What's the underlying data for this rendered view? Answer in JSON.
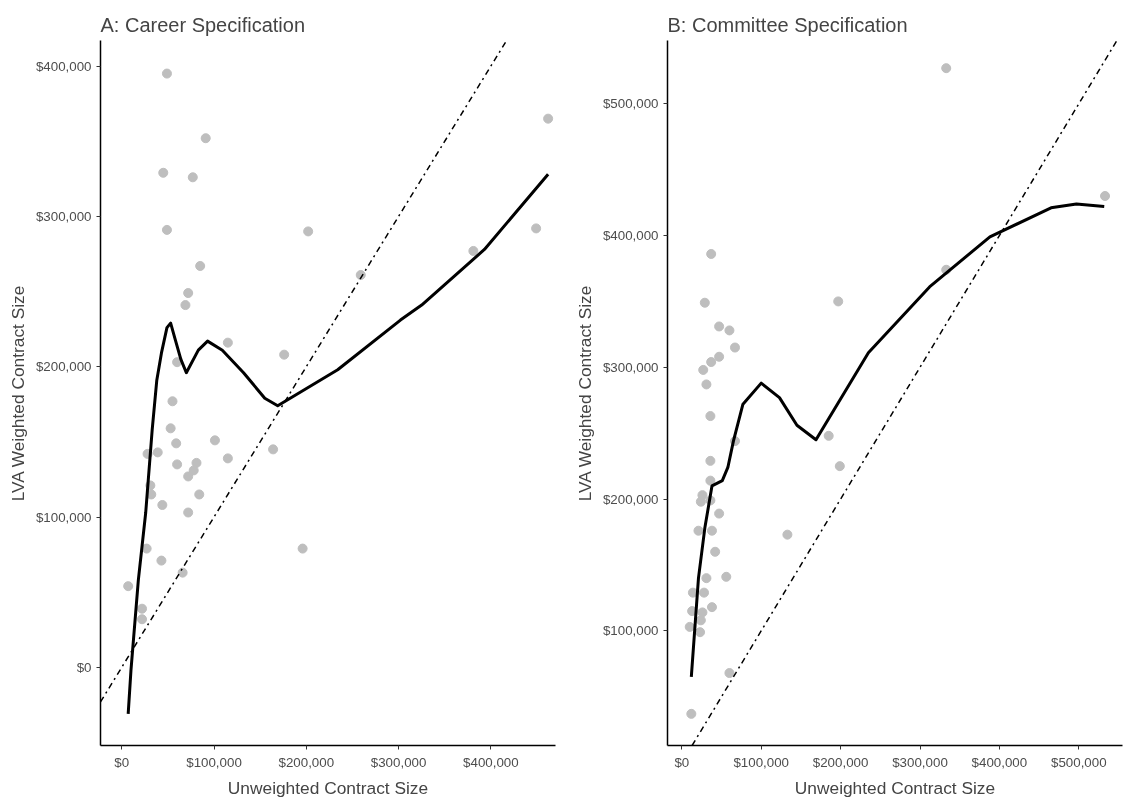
{
  "chart_data": [
    {
      "type": "scatter",
      "title": "A: Career Specification",
      "xlabel": "Unweighted Contract Size",
      "ylabel": "LVA Weighted Contract Size",
      "xlim": [
        -23000,
        470000
      ],
      "ylim": [
        -52000,
        417000
      ],
      "xticks": [
        {
          "value": 0,
          "label": "$0"
        },
        {
          "value": 100000,
          "label": "$100,000"
        },
        {
          "value": 200000,
          "label": "$200,000"
        },
        {
          "value": 300000,
          "label": "$300,000"
        },
        {
          "value": 400000,
          "label": "$400,000"
        }
      ],
      "yticks": [
        {
          "value": 0,
          "label": "$0"
        },
        {
          "value": 100000,
          "label": "$100,000"
        },
        {
          "value": 200000,
          "label": "$200,000"
        },
        {
          "value": 300000,
          "label": "$300,000"
        },
        {
          "value": 400000,
          "label": "$400,000"
        }
      ],
      "grid": false,
      "series": [
        {
          "color": "#bebebe",
          "marker": "circle",
          "x": [
            49000,
            91000,
            45000,
            77000,
            49000,
            85000,
            72000,
            69000,
            115000,
            176000,
            60000,
            55000,
            53000,
            59000,
            101000,
            39000,
            28000,
            60000,
            81000,
            78000,
            72000,
            115000,
            164000,
            31000,
            32000,
            44000,
            84000,
            72000,
            27000,
            43000,
            66000,
            7000,
            22000,
            22000,
            196000,
            202000,
            259000,
            381000,
            449000,
            462000
          ],
          "values": [
            395000,
            352000,
            329000,
            326000,
            291000,
            267000,
            249000,
            241000,
            216000,
            208000,
            203000,
            177000,
            159000,
            149000,
            151000,
            143000,
            142000,
            135000,
            136000,
            131000,
            127000,
            139000,
            145000,
            121000,
            115000,
            108000,
            115000,
            103000,
            79000,
            71000,
            63000,
            54000,
            39000,
            32000,
            79000,
            290000,
            261000,
            277000,
            292000,
            365000
          ]
        },
        {
          "type": "line",
          "color": "#000000",
          "line_style": "solid",
          "x": [
            7000,
            10000,
            18000,
            26000,
            33000,
            38000,
            43000,
            49000,
            53000,
            58000,
            64000,
            70000,
            83000,
            93000,
            109000,
            132000,
            155000,
            169000,
            234000,
            302000,
            325000,
            393000,
            462000
          ],
          "values": [
            -31000,
            -2000,
            58000,
            103000,
            158000,
            191000,
            209000,
            226000,
            229000,
            218000,
            205000,
            196000,
            211000,
            217000,
            211000,
            196000,
            179000,
            174000,
            198000,
            231000,
            241000,
            278000,
            328000
          ]
        },
        {
          "type": "line",
          "color": "#000000",
          "line_style": "dashdot",
          "x": [
            -23000,
            417000
          ],
          "values": [
            -23000,
            417000
          ]
        }
      ]
    },
    {
      "type": "scatter",
      "title": "B: Committee Specification",
      "xlabel": "Unweighted Contract Size",
      "ylabel": "LVA Weighted Contract Size",
      "xlim": [
        -18000,
        555000
      ],
      "ylim": [
        13000,
        548000
      ],
      "xticks": [
        {
          "value": 0,
          "label": "$0"
        },
        {
          "value": 100000,
          "label": "$100,000"
        },
        {
          "value": 200000,
          "label": "$200,000"
        },
        {
          "value": 300000,
          "label": "$300,000"
        },
        {
          "value": 400000,
          "label": "$400,000"
        },
        {
          "value": 500000,
          "label": "$500,000"
        }
      ],
      "yticks": [
        {
          "value": 100000,
          "label": "$100,000"
        },
        {
          "value": 200000,
          "label": "$200,000"
        },
        {
          "value": 300000,
          "label": "$300,000"
        },
        {
          "value": 400000,
          "label": "$400,000"
        },
        {
          "value": 500000,
          "label": "$500,000"
        }
      ],
      "grid": false,
      "series": [
        {
          "color": "#bebebe",
          "marker": "circle",
          "x": [
            333000,
            533000,
            333000,
            197000,
            185000,
            199000,
            133000,
            37000,
            29000,
            47000,
            60000,
            67000,
            47000,
            37000,
            27000,
            31000,
            36000,
            67000,
            36000,
            36000,
            26000,
            24000,
            36000,
            47000,
            21000,
            38000,
            42000,
            56000,
            31000,
            14000,
            28000,
            13000,
            26000,
            38000,
            24000,
            10000,
            23000,
            60000,
            12000
          ],
          "values": [
            527000,
            430000,
            374000,
            350000,
            248000,
            225000,
            173000,
            386000,
            349000,
            331000,
            328000,
            315000,
            308000,
            304000,
            298000,
            287000,
            263000,
            244000,
            229000,
            214000,
            203000,
            198000,
            199000,
            189000,
            176000,
            176000,
            160000,
            141000,
            140000,
            129000,
            129000,
            115000,
            114000,
            118000,
            108000,
            103000,
            99000,
            68000,
            37000
          ]
        },
        {
          "type": "line",
          "color": "#000000",
          "line_style": "solid",
          "x": [
            12000,
            21000,
            29000,
            38000,
            51000,
            58000,
            65000,
            77000,
            100000,
            123000,
            145000,
            169000,
            235000,
            312000,
            388000,
            465000,
            497000,
            532000
          ],
          "values": [
            65000,
            140000,
            178000,
            210000,
            214000,
            224000,
            244000,
            272000,
            288000,
            277000,
            256000,
            245000,
            311000,
            361000,
            399000,
            421000,
            424000,
            422000
          ]
        },
        {
          "type": "line",
          "color": "#000000",
          "line_style": "dashdot",
          "x": [
            13000,
            548000
          ],
          "values": [
            13000,
            548000
          ]
        }
      ]
    }
  ]
}
